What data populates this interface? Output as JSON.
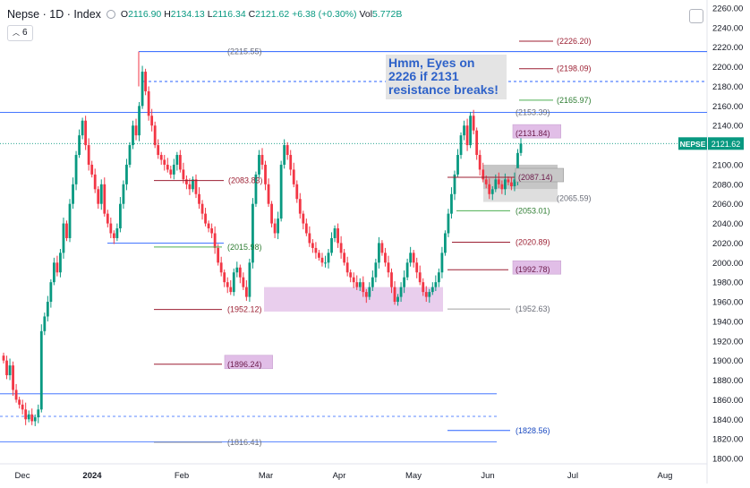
{
  "header": {
    "symbol": "Nepse · 1D · Index",
    "o_label": "O",
    "o_value": "2116.90",
    "h_label": "H",
    "h_value": "2134.13",
    "l_label": "L",
    "l_value": "2116.34",
    "c_label": "C",
    "c_value": "2121.62",
    "change": "+6.38 (+0.30%)",
    "vol_label": "Vol",
    "vol_value": "5.772B",
    "interval_badge": "6"
  },
  "annotation": {
    "text_line1": "Hmm, Eyes on",
    "text_line2": "2226 if 2131",
    "text_line3": "resistance breaks!"
  },
  "price_tag": {
    "symbol": "NEPSE",
    "value": "2121.62"
  },
  "colors": {
    "up": "#089981",
    "down": "#f23645",
    "blue_line": "#2962ff",
    "dark_red": "#9c1f32",
    "green_line": "#4caf50",
    "highlight_pink": "#e1bee7",
    "highlight_gray": "#b8b8b8",
    "annotation_bg": "#e4e4e4",
    "annotation_text": "#2e62c9"
  },
  "chart_data": {
    "type": "candlestick",
    "y_axis": {
      "ticks": [
        1800,
        1820,
        1840,
        1860,
        1880,
        1900,
        1920,
        1940,
        1960,
        1980,
        2000,
        2020,
        2040,
        2060,
        2080,
        2100,
        2120,
        2140,
        2160,
        2180,
        2200,
        2220,
        2240,
        2260
      ],
      "range": [
        1788,
        2262
      ],
      "position": "right"
    },
    "x_axis": {
      "labels": [
        "Dec",
        "2024",
        "Feb",
        "Mar",
        "Apr",
        "May",
        "Jun",
        "Jul",
        "Aug"
      ]
    },
    "last_price": 2121.62,
    "series_close": [
      1900,
      1885,
      1895,
      1870,
      1860,
      1855,
      1850,
      1840,
      1845,
      1838,
      1842,
      1850,
      1930,
      1945,
      1960,
      1980,
      2000,
      1990,
      2010,
      2040,
      2025,
      2060,
      2080,
      2110,
      2130,
      2145,
      2120,
      2100,
      2090,
      2075,
      2060,
      2080,
      2050,
      2040,
      2030,
      2025,
      2035,
      2060,
      2080,
      2100,
      2120,
      2140,
      2130,
      2160,
      2195,
      2175,
      2150,
      2140,
      2120,
      2110,
      2105,
      2100,
      2095,
      2090,
      2100,
      2110,
      2095,
      2085,
      2080,
      2075,
      2085,
      2070,
      2060,
      2050,
      2040,
      2035,
      2030,
      2015,
      2000,
      1990,
      1980,
      1975,
      1970,
      1990,
      1995,
      1985,
      1975,
      1965,
      2000,
      2060,
      2090,
      2110,
      2100,
      2080,
      2060,
      2040,
      2030,
      2045,
      2100,
      2120,
      2110,
      2095,
      2080,
      2065,
      2050,
      2040,
      2030,
      2020,
      2015,
      2010,
      2005,
      2000,
      2000,
      2010,
      2025,
      2035,
      2020,
      2010,
      2000,
      1990,
      1985,
      1980,
      1975,
      1980,
      1970,
      1965,
      1975,
      1985,
      2000,
      2020,
      2010,
      2000,
      1990,
      1975,
      1960,
      1965,
      1975,
      1985,
      2000,
      2010,
      2000,
      1990,
      1980,
      1970,
      1965,
      1970,
      1975,
      1980,
      1990,
      2010,
      2030,
      2050,
      2070,
      2090,
      2110,
      2130,
      2140,
      2120,
      2150,
      2135,
      2110,
      2095,
      2085,
      2080,
      2070,
      2075,
      2085,
      2080,
      2075,
      2085,
      2082,
      2078,
      2085,
      2112,
      2121.62
    ],
    "levels": [
      {
        "label": "(2226.20)",
        "value": 2226.2,
        "style": "box"
      },
      {
        "label": "(2198.09)",
        "value": 2198.09,
        "style": "box"
      },
      {
        "label": "(2165.97)",
        "value": 2165.97,
        "style": "green"
      },
      {
        "label": "(2153.39)",
        "value": 2153.39,
        "style": "gray"
      },
      {
        "label": "(2131.84)",
        "value": 2131.84,
        "style": "pinkbox"
      },
      {
        "label": "(2087.14)",
        "value": 2087.14,
        "style": "graybox"
      },
      {
        "label": "(2065.59)",
        "value": 2065.59,
        "style": "gray"
      },
      {
        "label": "(2053.01)",
        "value": 2053.01,
        "style": "green"
      },
      {
        "label": "(2020.89)",
        "value": 2020.89,
        "style": "red"
      },
      {
        "label": "(1992.78)",
        "value": 1992.78,
        "style": "pinkbox"
      },
      {
        "label": "(1952.63)",
        "value": 1952.63,
        "style": "gray"
      },
      {
        "label": "(1828.56)",
        "value": 1828.56,
        "style": "blue"
      },
      {
        "label": "(2215.55)",
        "value": 2215.55,
        "style": "gray"
      },
      {
        "label": "(2083.83)",
        "value": 2083.83,
        "style": "red"
      },
      {
        "label": "(2015.98)",
        "value": 2015.98,
        "style": "green"
      },
      {
        "label": "(1952.12)",
        "value": 1952.12,
        "style": "red"
      },
      {
        "label": "(1896.24)",
        "value": 1896.24,
        "style": "pinkbox"
      },
      {
        "label": "(1816.41)",
        "value": 1816.41,
        "style": "gray"
      }
    ],
    "horizontal_lines": [
      2215.55,
      2185,
      2153.39,
      2121.62,
      1866,
      1843,
      1817
    ],
    "grid": false
  }
}
